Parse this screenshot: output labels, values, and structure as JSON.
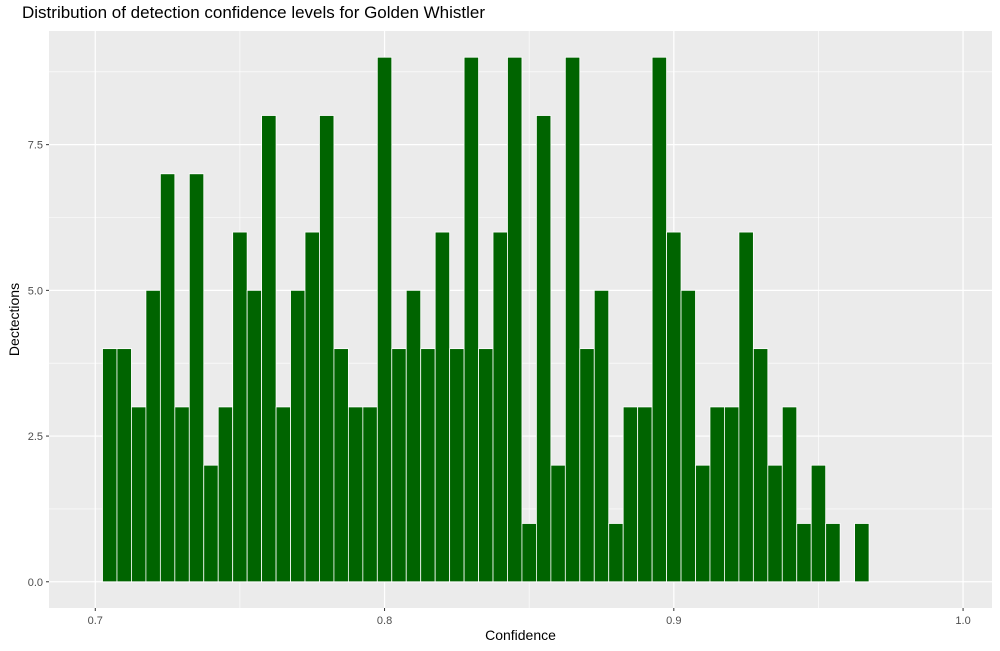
{
  "chart_data": {
    "type": "bar",
    "title": "Distribution of detection confidence levels for Golden Whistler",
    "xlabel": "Confidence",
    "ylabel": "Dectections",
    "xlim": [
      0.684,
      1.01
    ],
    "ylim": [
      -0.45,
      9.45
    ],
    "x_ticks": [
      {
        "value": 0.7,
        "label": "0.7"
      },
      {
        "value": 0.8,
        "label": "0.8"
      },
      {
        "value": 0.9,
        "label": "0.9"
      },
      {
        "value": 1.0,
        "label": "1.0"
      }
    ],
    "y_ticks": [
      {
        "value": 0.0,
        "label": "0.0"
      },
      {
        "value": 2.5,
        "label": "2.5"
      },
      {
        "value": 5.0,
        "label": "5.0"
      },
      {
        "value": 7.5,
        "label": "7.5"
      }
    ],
    "bin_start": 0.7025,
    "bin_width": 0.005,
    "values": [
      4,
      4,
      3,
      5,
      7,
      3,
      7,
      2,
      3,
      6,
      5,
      8,
      3,
      5,
      6,
      8,
      4,
      3,
      3,
      9,
      4,
      5,
      4,
      6,
      4,
      9,
      4,
      6,
      9,
      1,
      8,
      2,
      9,
      4,
      5,
      1,
      3,
      3,
      9,
      6,
      5,
      2,
      3,
      3,
      6,
      4,
      2,
      3,
      1,
      2,
      1,
      0,
      1
    ],
    "bar_color": "#006400",
    "bar_outline": "#ffffff",
    "panel_background": "#ebebeb",
    "grid": true,
    "grid_color": "#ffffff"
  }
}
